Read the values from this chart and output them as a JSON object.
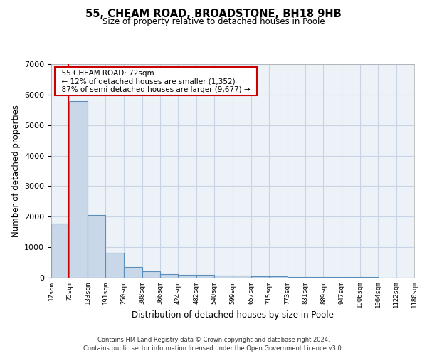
{
  "title": "55, CHEAM ROAD, BROADSTONE, BH18 9HB",
  "subtitle": "Size of property relative to detached houses in Poole",
  "xlabel": "Distribution of detached houses by size in Poole",
  "ylabel": "Number of detached properties",
  "footer_line1": "Contains HM Land Registry data © Crown copyright and database right 2024.",
  "footer_line2": "Contains public sector information licensed under the Open Government Licence v3.0.",
  "annotation_line1": "55 CHEAM ROAD: 72sqm",
  "annotation_line2": "← 12% of detached houses are smaller (1,352)",
  "annotation_line3": "87% of semi-detached houses are larger (9,677) →",
  "bar_color": "#c8d8e8",
  "bar_edge_color": "#5b8db8",
  "bar_edge_width": 0.8,
  "grid_color": "#c8d4e4",
  "bg_color": "#edf2f8",
  "red_line_color": "#cc0000",
  "annotation_box_color": "#cc0000",
  "ylim": [
    0,
    7000
  ],
  "yticks": [
    0,
    1000,
    2000,
    3000,
    4000,
    5000,
    6000,
    7000
  ],
  "bin_edges": [
    17,
    75,
    133,
    191,
    250,
    308,
    366,
    424,
    482,
    540,
    599,
    657,
    715,
    773,
    831,
    889,
    947,
    1006,
    1064,
    1122,
    1180
  ],
  "bin_labels": [
    "17sqm",
    "75sqm",
    "133sqm",
    "191sqm",
    "250sqm",
    "308sqm",
    "366sqm",
    "424sqm",
    "482sqm",
    "540sqm",
    "599sqm",
    "657sqm",
    "715sqm",
    "773sqm",
    "831sqm",
    "889sqm",
    "947sqm",
    "1006sqm",
    "1064sqm",
    "1122sqm",
    "1180sqm"
  ],
  "bar_heights": [
    1780,
    5780,
    2060,
    820,
    360,
    215,
    120,
    100,
    95,
    80,
    70,
    50,
    45,
    30,
    25,
    20,
    18,
    12,
    10,
    8
  ],
  "property_size": 72,
  "property_bin_index": 0
}
